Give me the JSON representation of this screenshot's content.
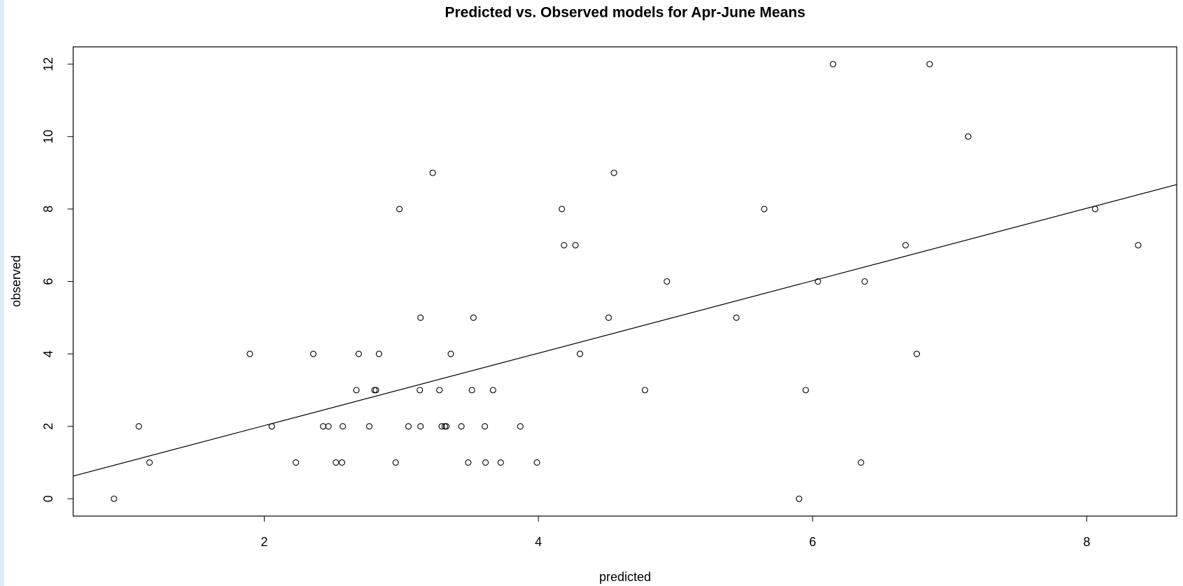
{
  "chart_data": {
    "type": "scatter",
    "title": "Predicted vs. Observed models for Apr-June  Means",
    "x_label": "predicted",
    "y_label": "observed",
    "series": [
      {
        "name": "observations",
        "color": "#000000",
        "x": [
          0.904,
          1.085,
          1.163,
          1.895,
          2.055,
          2.231,
          2.358,
          2.43,
          2.468,
          2.523,
          2.567,
          2.573,
          2.672,
          2.689,
          2.766,
          2.804,
          2.815,
          2.837,
          2.959,
          2.986,
          3.052,
          3.135,
          3.14,
          3.14,
          3.229,
          3.278,
          3.295,
          3.317,
          3.328,
          3.361,
          3.438,
          3.488,
          3.515,
          3.526,
          3.609,
          3.614,
          3.669,
          3.725,
          3.868,
          3.989,
          4.171,
          4.187,
          4.27,
          4.303,
          4.512,
          4.551,
          4.777,
          4.937,
          5.444,
          5.647,
          5.901,
          5.95,
          6.039,
          6.149,
          6.353,
          6.38,
          6.678,
          6.76,
          6.854,
          7.135,
          8.061,
          8.375
        ],
        "values": [
          0,
          2,
          1,
          4,
          2,
          1,
          4,
          2,
          2,
          1,
          1,
          2,
          3,
          4,
          2,
          3,
          3,
          4,
          1,
          8,
          2,
          3,
          5,
          2,
          9,
          3,
          2,
          2,
          2,
          4,
          2,
          1,
          3,
          5,
          2,
          1,
          3,
          1,
          2,
          1,
          8,
          7,
          7,
          4,
          5,
          9,
          3,
          6,
          5,
          8,
          0,
          3,
          6,
          12,
          1,
          6,
          7,
          4,
          12,
          10,
          8,
          7
        ]
      }
    ],
    "fit_line": {
      "intercept": 0.02,
      "slope": 1.0,
      "color": "#000000"
    },
    "xlim": [
      0.606,
      8.656
    ],
    "ylim": [
      -0.478,
      12.478
    ],
    "xticks": [
      2,
      4,
      6,
      8
    ],
    "yticks": [
      0,
      2,
      4,
      6,
      8,
      10,
      12
    ]
  }
}
